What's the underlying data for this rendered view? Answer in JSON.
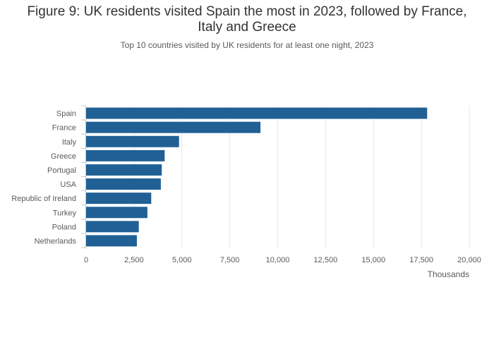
{
  "chart_data": {
    "type": "bar",
    "orientation": "horizontal",
    "title_line1": "Figure 9: UK residents visited Spain the most in 2023, followed by France,",
    "title_line2": "Italy and Greece",
    "subtitle": "Top 10 countries visited by UK residents for at least one night, 2023",
    "categories": [
      "Spain",
      "France",
      "Italy",
      "Greece",
      "Portugal",
      "USA",
      "Republic of Ireland",
      "Turkey",
      "Poland",
      "Netherlands"
    ],
    "values": [
      17800,
      9100,
      4850,
      4100,
      3950,
      3900,
      3400,
      3200,
      2750,
      2650
    ],
    "xlabel": "Thousands",
    "ylabel": "",
    "xlim": [
      0,
      20000
    ],
    "xticks": [
      0,
      2500,
      5000,
      7500,
      10000,
      12500,
      15000,
      17500,
      20000
    ],
    "xtick_labels": [
      "0",
      "2,500",
      "5,000",
      "7,500",
      "10,000",
      "12,500",
      "15,000",
      "17,500",
      "20,000"
    ],
    "grid": true,
    "bar_color": "#206095",
    "grid_color": "#e6e6e6"
  }
}
